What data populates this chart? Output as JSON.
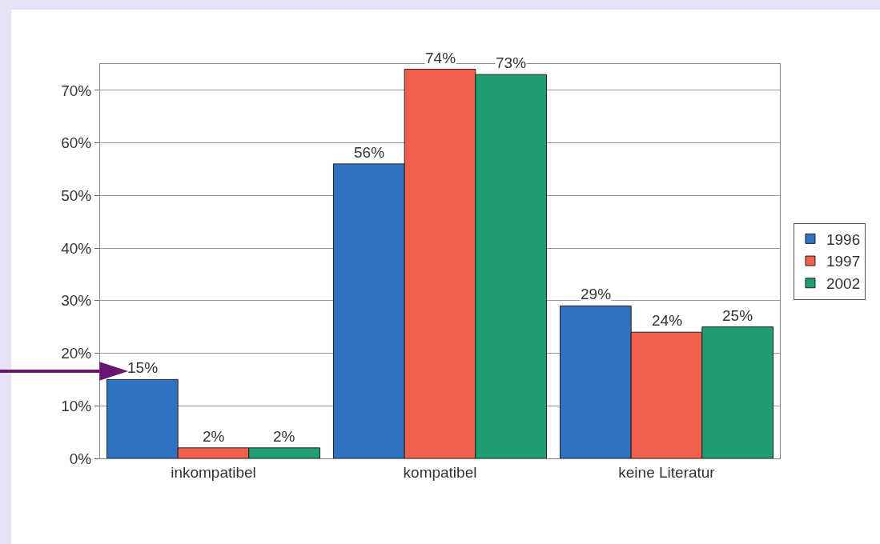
{
  "chart_data": {
    "type": "bar",
    "categories": [
      "inkompatibel",
      "kompatibel",
      "keine Literatur"
    ],
    "series": [
      {
        "name": "1996",
        "color": "#2f72c4",
        "values": [
          15,
          56,
          29
        ],
        "value_labels": [
          "15%",
          "56%",
          "29%"
        ]
      },
      {
        "name": "1997",
        "color": "#f0604c",
        "values": [
          2,
          74,
          24
        ],
        "value_labels": [
          "2%",
          "74%",
          "24%"
        ]
      },
      {
        "name": "2002",
        "color": "#1f9e72",
        "values": [
          2,
          73,
          25
        ],
        "value_labels": [
          "2%",
          "73%",
          "25%"
        ]
      }
    ],
    "ylim": [
      0,
      75
    ],
    "yticks": [
      {
        "value": 0,
        "label": "0%"
      },
      {
        "value": 10,
        "label": "10%"
      },
      {
        "value": 20,
        "label": "20%"
      },
      {
        "value": 30,
        "label": "30%"
      },
      {
        "value": 40,
        "label": "40%"
      },
      {
        "value": 50,
        "label": "50%"
      },
      {
        "value": 60,
        "label": "60%"
      },
      {
        "value": 70,
        "label": "70%"
      }
    ],
    "grid": "y",
    "legend": "right"
  }
}
